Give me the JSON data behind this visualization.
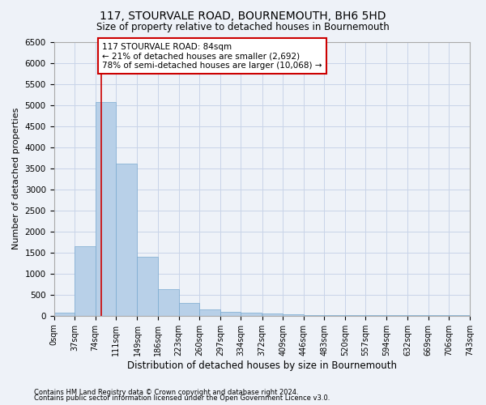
{
  "title": "117, STOURVALE ROAD, BOURNEMOUTH, BH6 5HD",
  "subtitle": "Size of property relative to detached houses in Bournemouth",
  "xlabel": "Distribution of detached houses by size in Bournemouth",
  "ylabel": "Number of detached properties",
  "bin_edges": [
    0,
    37,
    74,
    111,
    149,
    186,
    223,
    260,
    297,
    334,
    372,
    409,
    446,
    483,
    520,
    557,
    594,
    632,
    669,
    706,
    743
  ],
  "bar_heights": [
    75,
    1650,
    5075,
    3600,
    1400,
    625,
    300,
    150,
    100,
    75,
    50,
    30,
    20,
    10,
    5,
    5,
    5,
    5,
    5,
    5
  ],
  "bar_color": "#b8d0e8",
  "bar_edgecolor": "#7aaad0",
  "property_size": 84,
  "vline_color": "#cc0000",
  "annotation_line1": "117 STOURVALE ROAD: 84sqm",
  "annotation_line2": "← 21% of detached houses are smaller (2,692)",
  "annotation_line3": "78% of semi-detached houses are larger (10,068) →",
  "annotation_box_color": "#ffffff",
  "annotation_box_edgecolor": "#cc0000",
  "ylim": [
    0,
    6500
  ],
  "yticks": [
    0,
    500,
    1000,
    1500,
    2000,
    2500,
    3000,
    3500,
    4000,
    4500,
    5000,
    5500,
    6000,
    6500
  ],
  "footer1": "Contains HM Land Registry data © Crown copyright and database right 2024.",
  "footer2": "Contains public sector information licensed under the Open Government Licence v3.0.",
  "grid_color": "#c8d4e8",
  "background_color": "#eef2f8"
}
